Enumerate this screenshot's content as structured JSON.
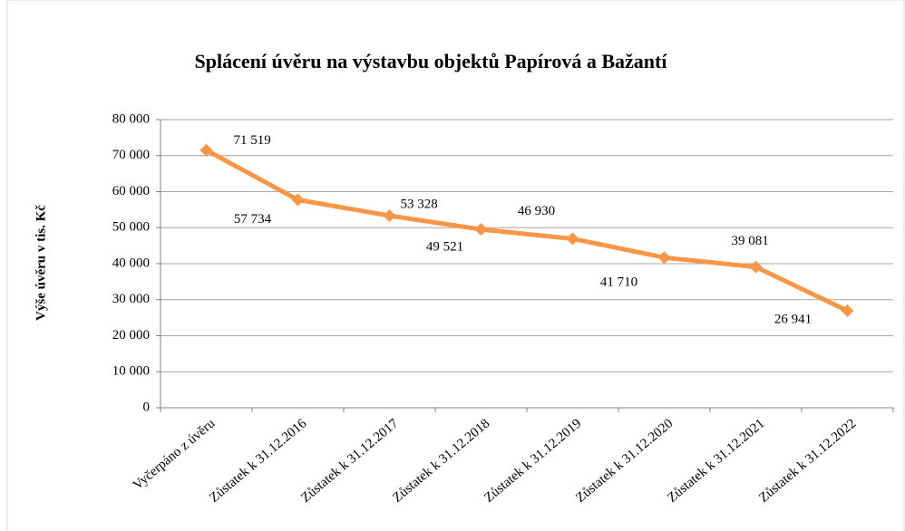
{
  "chart_data": {
    "type": "line",
    "title": "Splácení úvěru na výstavbu objektů Papírová a Bažantí",
    "y_label": "Výše úvěru v tis. Kč",
    "categories": [
      "Vyčerpáno z úvěru",
      "Zůstatek k 31.12.2016",
      "Zůstatek k 31.12.2017",
      "Zůstatek k 31.12.2018",
      "Zůstatek k 31.12.2019",
      "Zůstatek k 31.12.2020",
      "Zůstatek k 31.12.2021",
      "Zůstatek k 31.12.2022"
    ],
    "series": [
      {
        "name": "Výše úvěru",
        "color": "#f79646",
        "values": [
          71519,
          57734,
          53328,
          49521,
          46930,
          41710,
          39081,
          26941
        ],
        "value_labels": [
          "71 519",
          "57 734",
          "53 328",
          "49 521",
          "46 930",
          "41 710",
          "39 081",
          "26 941"
        ]
      }
    ],
    "ylim": [
      0,
      80000
    ],
    "yticks": [
      {
        "value": 0,
        "label": "0"
      },
      {
        "value": 10000,
        "label": "10 000"
      },
      {
        "value": 20000,
        "label": "20 000"
      },
      {
        "value": 30000,
        "label": "30 000"
      },
      {
        "value": 40000,
        "label": "40 000"
      },
      {
        "value": 50000,
        "label": "50 000"
      },
      {
        "value": 60000,
        "label": "60 000"
      },
      {
        "value": 70000,
        "label": "70 000"
      },
      {
        "value": 80000,
        "label": "80 000"
      }
    ],
    "grid": true
  }
}
